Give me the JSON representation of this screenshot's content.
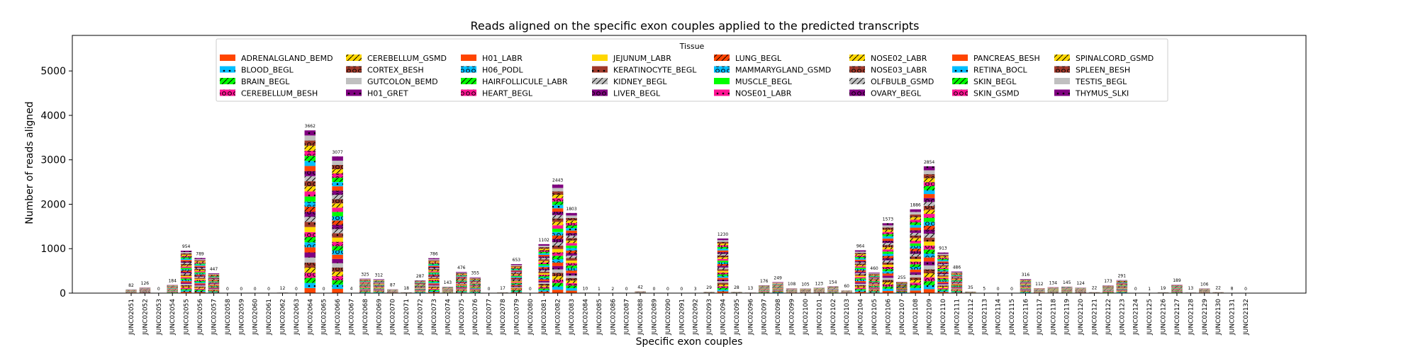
{
  "chart_data": {
    "type": "bar",
    "stacked": true,
    "title": "Reads aligned on the specific exon couples applied to the predicted transcripts",
    "xlabel": "Specific exon couples",
    "ylabel": "Number of reads aligned",
    "ylim": [
      0,
      5800
    ],
    "yticks": [
      0,
      1000,
      2000,
      3000,
      4000,
      5000
    ],
    "legend": {
      "title": "Tissue",
      "placement": "top-center",
      "entries": [
        {
          "name": "ADRENALGLAND_BEMD",
          "color": "#ff4500",
          "hatch": "none"
        },
        {
          "name": "BLOOD_BEGL",
          "color": "#00bfff",
          "hatch": "dot"
        },
        {
          "name": "BRAIN_BEGL",
          "color": "#00ff00",
          "hatch": "slash"
        },
        {
          "name": "CEREBELLUM_BESH",
          "color": "#ff1493",
          "hatch": "ring"
        },
        {
          "name": "CEREBELLUM_GSMD",
          "color": "#ffd700",
          "hatch": "slash"
        },
        {
          "name": "CORTEX_BESH",
          "color": "#a0392b",
          "hatch": "ring"
        },
        {
          "name": "GUTCOLON_BEMD",
          "color": "#c0c0c0",
          "hatch": "none"
        },
        {
          "name": "H01_GRET",
          "color": "#800080",
          "hatch": "dot"
        },
        {
          "name": "H01_LABR",
          "color": "#ff4500",
          "hatch": "none"
        },
        {
          "name": "H06_PODL",
          "color": "#00bfff",
          "hatch": "ring"
        },
        {
          "name": "HAIRFOLLICULE_LABR",
          "color": "#00ff00",
          "hatch": "slash"
        },
        {
          "name": "HEART_BEGL",
          "color": "#ff1493",
          "hatch": "ring"
        },
        {
          "name": "JEJUNUM_LABR",
          "color": "#ffd700",
          "hatch": "none"
        },
        {
          "name": "KERATINOCYTE_BEGL",
          "color": "#a0392b",
          "hatch": "dot"
        },
        {
          "name": "KIDNEY_BEGL",
          "color": "#c0c0c0",
          "hatch": "slash"
        },
        {
          "name": "LIVER_BEGL",
          "color": "#800080",
          "hatch": "ring"
        },
        {
          "name": "LUNG_BEGL",
          "color": "#ff4500",
          "hatch": "slash"
        },
        {
          "name": "MAMMARYGLAND_GSMD",
          "color": "#00bfff",
          "hatch": "ring"
        },
        {
          "name": "MUSCLE_BEGL",
          "color": "#00ff00",
          "hatch": "none"
        },
        {
          "name": "NOSE01_LABR",
          "color": "#ff1493",
          "hatch": "dot"
        },
        {
          "name": "NOSE02_LABR",
          "color": "#ffd700",
          "hatch": "slash"
        },
        {
          "name": "NOSE03_LABR",
          "color": "#a0392b",
          "hatch": "ring"
        },
        {
          "name": "OLFBULB_GSMD",
          "color": "#c0c0c0",
          "hatch": "slash"
        },
        {
          "name": "OVARY_BEGL",
          "color": "#800080",
          "hatch": "ring"
        },
        {
          "name": "PANCREAS_BESH",
          "color": "#ff4500",
          "hatch": "none"
        },
        {
          "name": "RETINA_BOCL",
          "color": "#00bfff",
          "hatch": "dot"
        },
        {
          "name": "SKIN_BEGL",
          "color": "#00ff00",
          "hatch": "slash"
        },
        {
          "name": "SKIN_GSMD",
          "color": "#ff1493",
          "hatch": "ring"
        },
        {
          "name": "SPINALCORD_GSMD",
          "color": "#ffd700",
          "hatch": "slash"
        },
        {
          "name": "SPLEEN_BESH",
          "color": "#a0392b",
          "hatch": "ring"
        },
        {
          "name": "TESTIS_BEGL",
          "color": "#c0c0c0",
          "hatch": "none"
        },
        {
          "name": "THYMUS_SLKI",
          "color": "#800080",
          "hatch": "dot"
        }
      ]
    },
    "categories": [
      "JUNC02051",
      "JUNC02052",
      "JUNC02053",
      "JUNC02054",
      "JUNC02055",
      "JUNC02056",
      "JUNC02057",
      "JUNC02058",
      "JUNC02059",
      "JUNC02060",
      "JUNC02061",
      "JUNC02062",
      "JUNC02063",
      "JUNC02064",
      "JUNC02065",
      "JUNC02066",
      "JUNC02067",
      "JUNC02068",
      "JUNC02069",
      "JUNC02070",
      "JUNC02071",
      "JUNC02072",
      "JUNC02073",
      "JUNC02074",
      "JUNC02075",
      "JUNC02076",
      "JUNC02077",
      "JUNC02078",
      "JUNC02079",
      "JUNC02080",
      "JUNC02081",
      "JUNC02082",
      "JUNC02083",
      "JUNC02084",
      "JUNC02085",
      "JUNC02086",
      "JUNC02087",
      "JUNC02088",
      "JUNC02089",
      "JUNC02090",
      "JUNC02091",
      "JUNC02092",
      "JUNC02093",
      "JUNC02094",
      "JUNC02095",
      "JUNC02096",
      "JUNC02097",
      "JUNC02098",
      "JUNC02099",
      "JUNC02100",
      "JUNC02101",
      "JUNC02102",
      "JUNC02103",
      "JUNC02104",
      "JUNC02105",
      "JUNC02106",
      "JUNC02107",
      "JUNC02108",
      "JUNC02109",
      "JUNC02110",
      "JUNC02111",
      "JUNC02112",
      "JUNC02113",
      "JUNC02114",
      "JUNC02115",
      "JUNC02116",
      "JUNC02117",
      "JUNC02118",
      "JUNC02119",
      "JUNC02120",
      "JUNC02121",
      "JUNC02122",
      "JUNC02123",
      "JUNC02124",
      "JUNC02125",
      "JUNC02126",
      "JUNC02127",
      "JUNC02128",
      "JUNC02129",
      "JUNC02130",
      "JUNC02131",
      "JUNC02132"
    ],
    "totals": [
      82,
      126,
      0,
      184,
      954,
      789,
      447,
      0,
      0,
      0,
      0,
      12,
      0,
      3662,
      0,
      3077,
      4,
      325,
      312,
      87,
      18,
      287,
      786,
      143,
      476,
      355,
      0,
      17,
      653,
      0,
      1102,
      2443,
      1803,
      10,
      1,
      2,
      0,
      42,
      0,
      0,
      0,
      3,
      29,
      1230,
      28,
      13,
      176,
      249,
      108,
      105,
      123,
      154,
      60,
      964,
      460,
      1573,
      255,
      1886,
      2854,
      913,
      486,
      35,
      5,
      0,
      0,
      316,
      112,
      134,
      145,
      124,
      22,
      173,
      291,
      0,
      1,
      19,
      189,
      13,
      106,
      22,
      8,
      0
    ]
  }
}
